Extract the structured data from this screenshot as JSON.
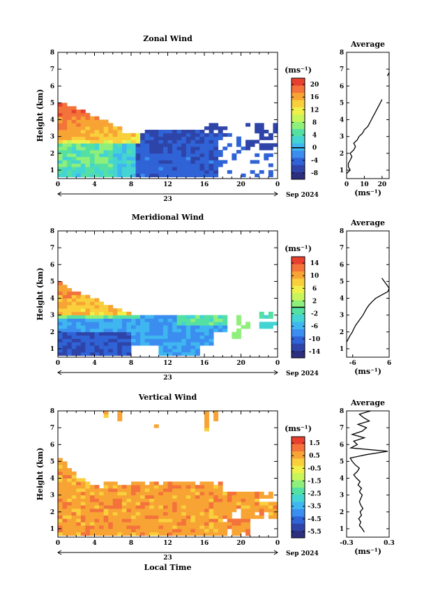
{
  "chart_data": [
    {
      "type": "heatmap",
      "title": "Zonal Wind",
      "xlabel": "",
      "ylabel": "Height (km)",
      "xlim": [
        0,
        24
      ],
      "ylim": [
        0.5,
        8
      ],
      "xticks": [
        "0",
        "4",
        "8",
        "12",
        "16",
        "20",
        "0"
      ],
      "yticks": [
        "1",
        "2",
        "3",
        "4",
        "5",
        "6",
        "7",
        "8"
      ],
      "date_day": "23",
      "date_month": "Sep 2024",
      "colorbar": {
        "unit": "(ms⁻¹)",
        "range": [
          -10,
          22
        ],
        "ticks": [
          {
            "value": 20,
            "label": "20"
          },
          {
            "value": 16,
            "label": "16"
          },
          {
            "value": 12,
            "label": "12"
          },
          {
            "value": 8,
            "label": "8"
          },
          {
            "value": 4,
            "label": "4"
          },
          {
            "value": 0,
            "label": "0"
          },
          {
            "value": -4,
            "label": "-4"
          },
          {
            "value": -8,
            "label": "-8"
          }
        ],
        "zero_line": 0
      },
      "field_model": {
        "kind": "zonal"
      },
      "average_profile": {
        "title": "Average",
        "xlim": [
          0,
          24
        ],
        "xticks": [
          {
            "value": 0,
            "label": "0"
          },
          {
            "value": 10,
            "label": "10"
          },
          {
            "value": 20,
            "label": "20"
          }
        ],
        "xlabel": "(ms⁻¹)",
        "heights": [
          0.8,
          1.0,
          1.2,
          1.4,
          1.6,
          1.8,
          2.0,
          2.2,
          2.4,
          2.6,
          2.8,
          3.0,
          3.2,
          3.4,
          3.6,
          3.8,
          4.0,
          4.2,
          4.4,
          4.6,
          4.8,
          5.0,
          5.2,
          6.6,
          6.8
        ],
        "values": [
          0,
          2,
          1,
          1,
          2,
          3,
          2,
          4,
          5,
          4,
          6,
          7,
          9,
          10,
          12,
          13,
          14,
          15,
          16,
          17,
          18,
          19,
          20,
          23,
          24
        ]
      }
    },
    {
      "type": "heatmap",
      "title": "Meridional Wind",
      "xlabel": "",
      "ylabel": "Height (km)",
      "xlim": [
        0,
        24
      ],
      "ylim": [
        0.5,
        8
      ],
      "xticks": [
        "0",
        "4",
        "8",
        "12",
        "16",
        "20",
        "0"
      ],
      "yticks": [
        "1",
        "2",
        "3",
        "4",
        "5",
        "6",
        "7",
        "8"
      ],
      "date_day": "23",
      "date_month": "Sep 2024",
      "colorbar": {
        "unit": "(ms⁻¹)",
        "range": [
          -16,
          16
        ],
        "ticks": [
          {
            "value": 14,
            "label": "14"
          },
          {
            "value": 10,
            "label": "10"
          },
          {
            "value": 6,
            "label": "6"
          },
          {
            "value": 2,
            "label": "2"
          },
          {
            "value": -2,
            "label": "-2"
          },
          {
            "value": -6,
            "label": "-6"
          },
          {
            "value": -10,
            "label": "-10"
          },
          {
            "value": -14,
            "label": "-14"
          }
        ],
        "zero_line": 0
      },
      "field_model": {
        "kind": "meridional"
      },
      "average_profile": {
        "title": "Average",
        "xlim": [
          -8,
          6
        ],
        "xticks": [
          {
            "value": -6,
            "label": "-6"
          },
          {
            "value": 6,
            "label": "6"
          }
        ],
        "xlabel": "(ms⁻¹)",
        "heights": [
          1.4,
          1.6,
          1.8,
          2.0,
          2.2,
          2.4,
          2.6,
          2.8,
          3.0,
          3.2,
          3.4,
          3.6,
          3.8,
          4.0,
          4.2,
          4.4,
          4.6,
          4.8,
          5.0,
          5.2
        ],
        "values": [
          -8,
          -7.4,
          -6.8,
          -6.1,
          -5.6,
          -5.0,
          -4.2,
          -3.4,
          -2.6,
          -2.0,
          -1.4,
          -0.6,
          0.4,
          1.6,
          3.6,
          5.6,
          6.0,
          5.2,
          4.4,
          3.6
        ]
      }
    },
    {
      "type": "heatmap",
      "title": "Vertical Wind",
      "xlabel": "Local Time",
      "ylabel": "Height (km)",
      "xlim": [
        0,
        24
      ],
      "ylim": [
        0.5,
        8
      ],
      "xticks": [
        "0",
        "4",
        "8",
        "12",
        "16",
        "20",
        "0"
      ],
      "yticks": [
        "1",
        "2",
        "3",
        "4",
        "5",
        "6",
        "7",
        "8"
      ],
      "date_day": "23",
      "date_month": "Sep 2024",
      "colorbar": {
        "unit": "(ms⁻¹)",
        "range": [
          -6.0,
          2.0
        ],
        "ticks": [
          {
            "value": 1.5,
            "label": "1.5"
          },
          {
            "value": 0.5,
            "label": "0.5"
          },
          {
            "value": -0.5,
            "label": "-0.5"
          },
          {
            "value": -1.5,
            "label": "-1.5"
          },
          {
            "value": -2.5,
            "label": "-2.5"
          },
          {
            "value": -3.5,
            "label": "-3.5"
          },
          {
            "value": -4.5,
            "label": "-4.5"
          },
          {
            "value": -5.5,
            "label": "-5.5"
          }
        ],
        "zero_line": null
      },
      "field_model": {
        "kind": "vertical"
      },
      "average_profile": {
        "title": "Average",
        "xlim": [
          -0.3,
          0.3
        ],
        "xticks": [
          {
            "value": -0.3,
            "label": "-0.3"
          },
          {
            "value": 0.3,
            "label": "0.3"
          }
        ],
        "xlabel": "(ms⁻¹)",
        "heights": [
          0.8,
          1.0,
          1.2,
          1.4,
          1.6,
          1.8,
          2.0,
          2.2,
          2.4,
          2.6,
          2.8,
          3.0,
          3.2,
          3.4,
          3.6,
          3.8,
          4.0,
          4.2,
          4.4,
          4.6,
          4.8,
          5.0,
          5.2,
          5.4,
          5.6,
          5.8,
          6.0,
          6.2,
          6.4,
          6.6,
          6.8,
          7.0,
          7.2,
          7.4,
          7.6,
          7.8,
          8.0
        ],
        "values": [
          -0.05,
          -0.08,
          -0.12,
          -0.1,
          -0.13,
          -0.09,
          -0.11,
          -0.07,
          -0.1,
          -0.12,
          -0.1,
          -0.08,
          -0.12,
          -0.09,
          -0.14,
          -0.11,
          -0.16,
          -0.2,
          -0.15,
          -0.12,
          -0.18,
          -0.22,
          -0.25,
          -0.02,
          0.28,
          -0.24,
          -0.15,
          -0.2,
          -0.05,
          -0.22,
          -0.08,
          -0.02,
          -0.14,
          0.02,
          -0.06,
          -0.12,
          0.04
        ]
      }
    }
  ],
  "colormap": [
    "#2b2f7e",
    "#2e44a8",
    "#2f63d6",
    "#3b8df0",
    "#3fb6f0",
    "#43d4d3",
    "#55e0a3",
    "#8ef07a",
    "#c8f55a",
    "#f1f04a",
    "#f9cf3c",
    "#f7a435",
    "#f3733a",
    "#e8402f"
  ]
}
